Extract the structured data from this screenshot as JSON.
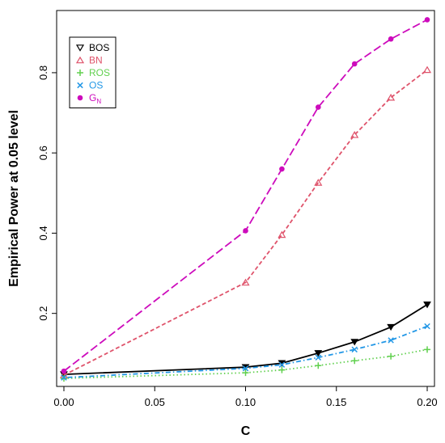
{
  "chart_data": {
    "type": "line",
    "xlabel": "C",
    "ylabel": "Empirical Power at 0.05 level",
    "xlim": [
      -0.004,
      0.204
    ],
    "ylim": [
      0.018,
      0.955
    ],
    "x_ticks": [
      "0.00",
      "0.05",
      "0.10",
      "0.15",
      "0.20"
    ],
    "y_ticks": [
      "0.2",
      "0.4",
      "0.6",
      "0.8"
    ],
    "x": [
      0.0,
      0.1,
      0.12,
      0.14,
      0.16,
      0.18,
      0.2
    ],
    "legend_position": "top-left",
    "series": [
      {
        "name": "BOS",
        "color": "#000000",
        "marker": "down-triangle",
        "line": "solid",
        "values": [
          0.048,
          0.066,
          0.076,
          0.101,
          0.129,
          0.166,
          0.222
        ]
      },
      {
        "name": "BN",
        "color": "#df536b",
        "marker": "up-triangle-open",
        "line": "dashed",
        "values": [
          0.046,
          0.277,
          0.396,
          0.526,
          0.645,
          0.738,
          0.807
        ]
      },
      {
        "name": "ROS",
        "color": "#61d04f",
        "marker": "plus",
        "line": "dotted",
        "values": [
          0.038,
          0.052,
          0.059,
          0.07,
          0.082,
          0.093,
          0.11
        ]
      },
      {
        "name": "OS",
        "color": "#2297e6",
        "marker": "cross",
        "line": "dotdash",
        "values": [
          0.04,
          0.063,
          0.072,
          0.09,
          0.11,
          0.133,
          0.168
        ]
      },
      {
        "name": "G",
        "name_subscript": "N",
        "color": "#cd0bbc",
        "marker": "filled-circle",
        "line": "longdash",
        "values": [
          0.056,
          0.406,
          0.56,
          0.714,
          0.822,
          0.884,
          0.932
        ]
      }
    ]
  }
}
